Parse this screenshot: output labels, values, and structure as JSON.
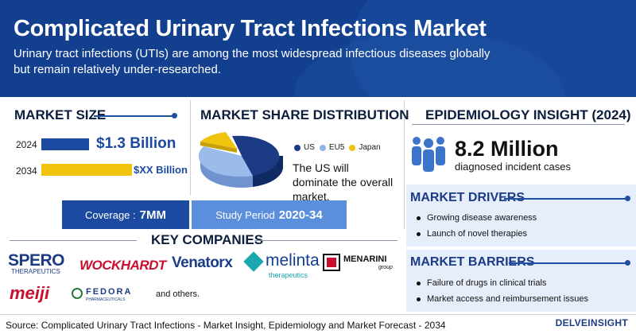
{
  "header": {
    "title": "Complicated Urinary Tract Infections Market",
    "subtitle": "Urinary tract infections (UTIs) are among the most widespread infectious diseases globally but remain relatively under-researched."
  },
  "market_size": {
    "title": "MARKET SIZE",
    "rows": [
      {
        "year": "2024",
        "value": "$1.3 Billion"
      },
      {
        "year": "2034",
        "value": "$XX Billion"
      }
    ],
    "colors": {
      "bar_2024": "#1b4aa0",
      "bar_2034": "#f0c40c"
    }
  },
  "market_share": {
    "title": "MARKET SHARE DISTRIBUTION",
    "legend": [
      {
        "label": "US",
        "color": "#1b3c85"
      },
      {
        "label": "EU5",
        "color": "#8fb4ea"
      },
      {
        "label": "Japan",
        "color": "#f0c40c"
      }
    ],
    "note": "The US will dominate the overall market."
  },
  "band": {
    "coverage_label": "Coverage :",
    "coverage_value": "7MM",
    "study_label": "Study Period",
    "study_value": "2020-34"
  },
  "key_companies": {
    "title": "KEY COMPANIES",
    "logos": [
      "SPERO",
      "THERAPEUTICS",
      "WOCKHARDT",
      "Venatorx",
      "melinta",
      "therapeutics",
      "MENARINI",
      "group",
      "meiji",
      "FEDORA",
      "PHARMACEUTICALS"
    ],
    "others": "and others."
  },
  "epidemiology": {
    "title": "EPIDEMIOLOGY INSIGHT (2024)",
    "number": "8.2 Million",
    "description": "diagnosed incident cases",
    "icon": "people-group-icon"
  },
  "drivers": {
    "title": "MARKET DRIVERS",
    "items": [
      "Growing disease awareness",
      "Launch of novel therapies"
    ]
  },
  "barriers": {
    "title": "MARKET BARRIERS",
    "items": [
      "Failure of drugs in clinical trials",
      "Market access and reimbursement issues"
    ]
  },
  "footer": {
    "source": "Source: Complicated Urinary Tract Infections - Market Insight, Epidemiology and Market Forecast - 2034",
    "brand": "DELVEINSIGHT"
  },
  "colors": {
    "header_bg": "#123f8e",
    "accent": "#1b4aa0",
    "yellow": "#f0c40c",
    "band_dark": "#1b4aa0",
    "band_light": "#5b8fdc"
  }
}
